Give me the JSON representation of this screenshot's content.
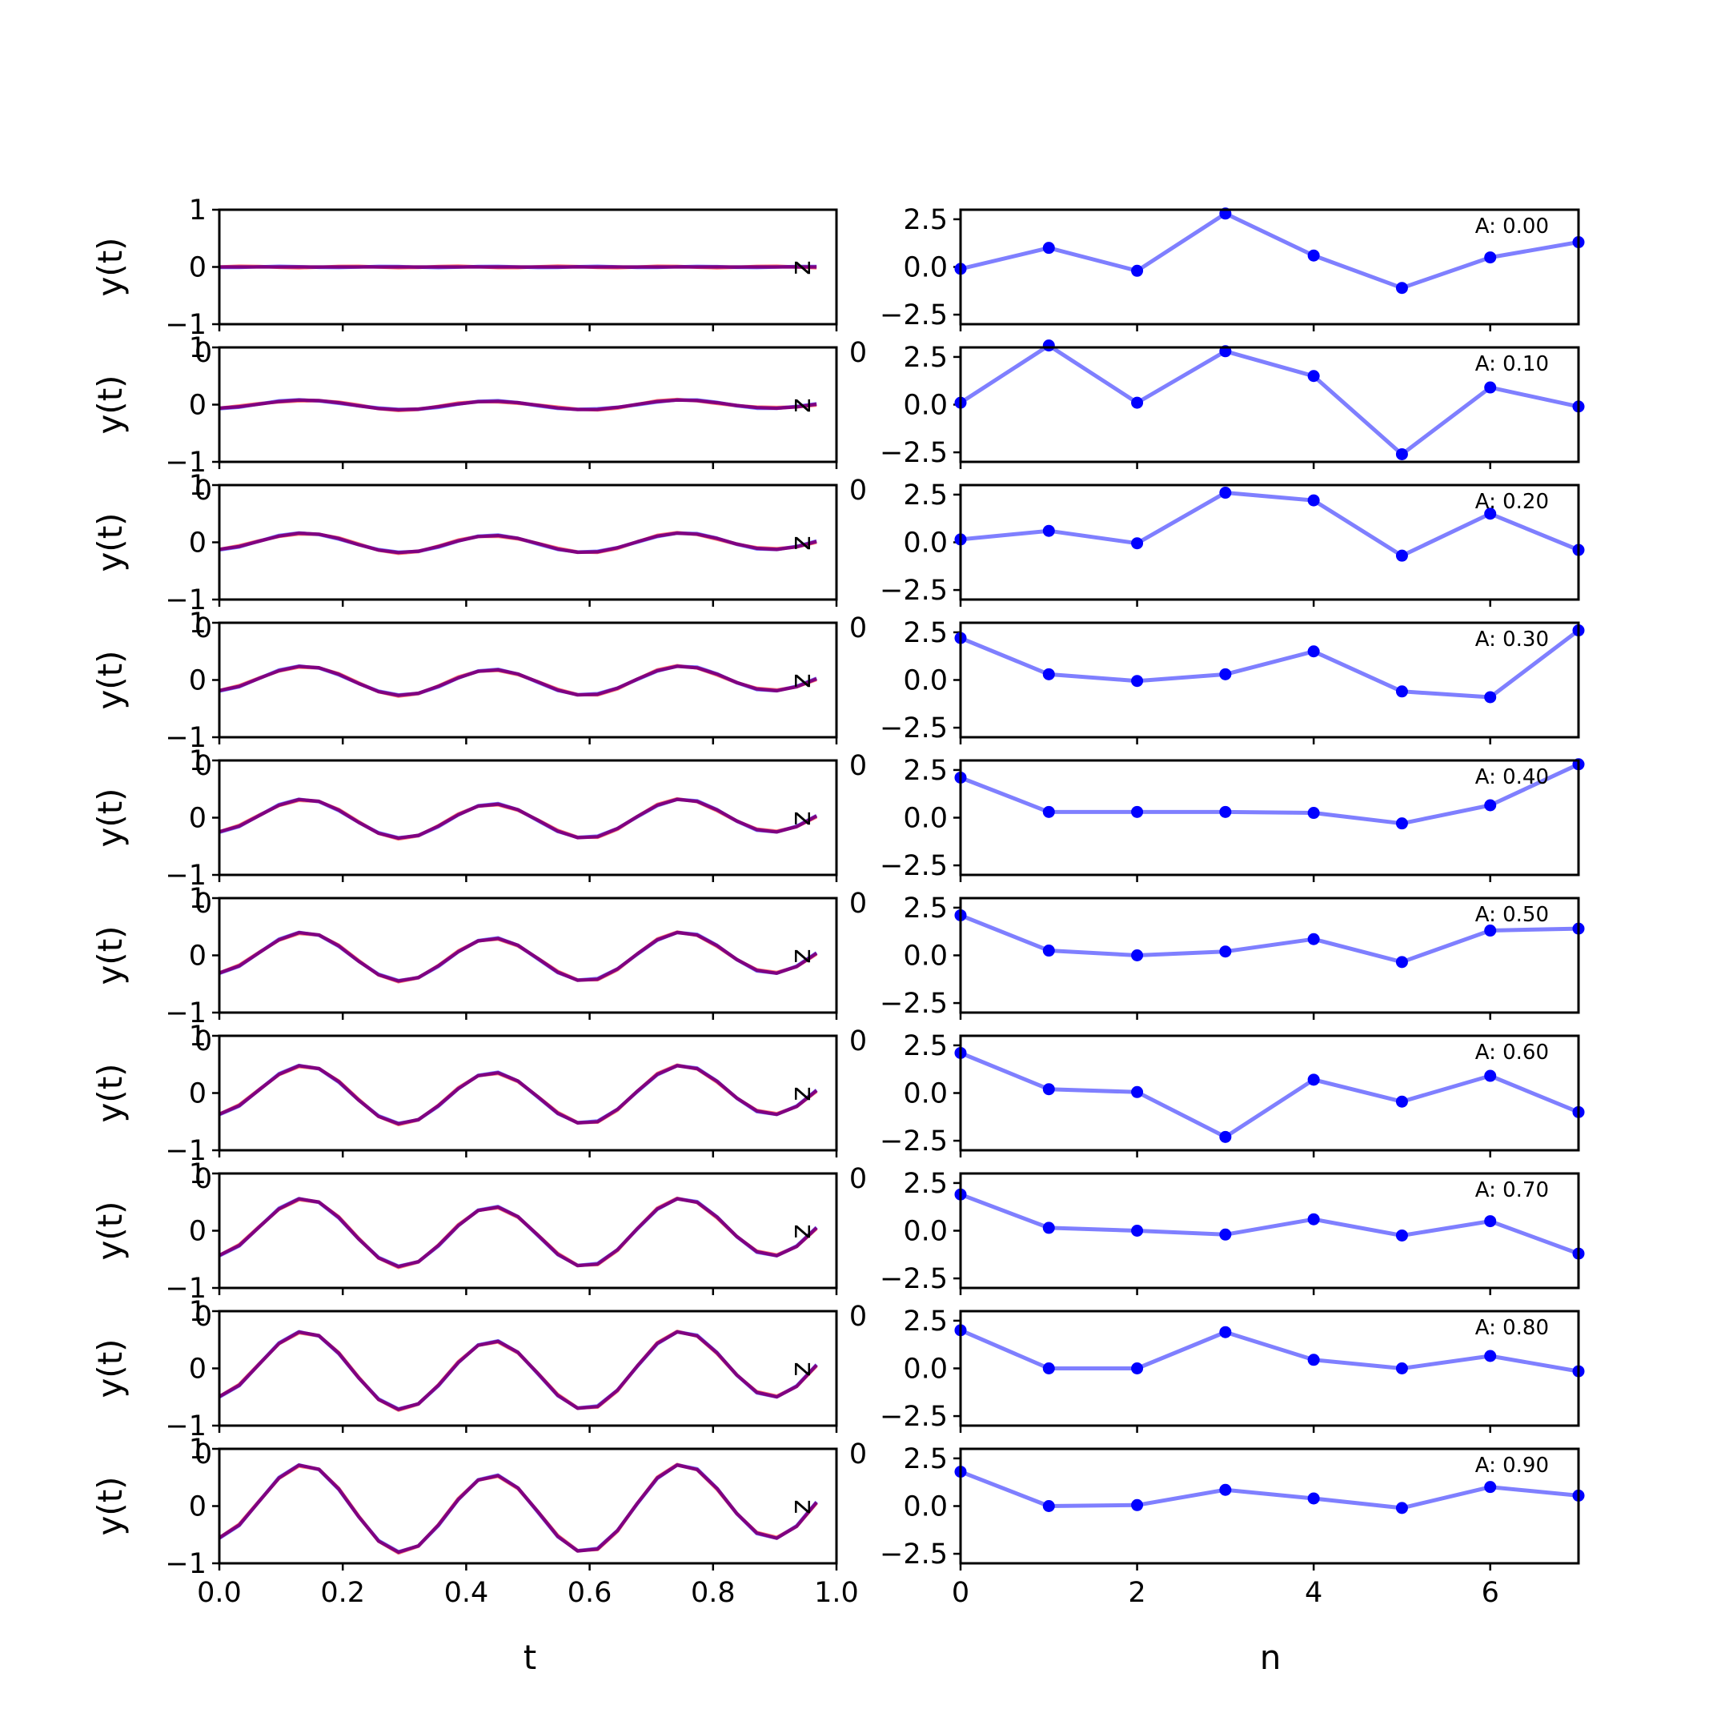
{
  "chart_data": [
    {
      "type": "line",
      "panel": "left",
      "xlabel": "t",
      "ylabel": "y(t)",
      "xlim": [
        0,
        1
      ],
      "ylim": [
        -1,
        1
      ],
      "xticks": [
        "0.0",
        "0.2",
        "0.4",
        "0.6",
        "0.8",
        "1.0"
      ],
      "yticks": [
        "−1",
        "0",
        "1"
      ],
      "grid": false,
      "x": [
        0.0,
        0.0323,
        0.0645,
        0.0968,
        0.129,
        0.1613,
        0.1935,
        0.2258,
        0.2581,
        0.2903,
        0.3226,
        0.3548,
        0.3871,
        0.4194,
        0.4516,
        0.4839,
        0.5161,
        0.5484,
        0.5806,
        0.6129,
        0.6452,
        0.6774,
        0.7097,
        0.7419,
        0.7742,
        0.8065,
        0.8387,
        0.871,
        0.9032,
        0.9355,
        0.9677
      ],
      "series_colors": [
        "#ff0000",
        "#0000ff",
        "#800080"
      ],
      "rows": [
        {
          "A": 0.0
        },
        {
          "A": 0.1
        },
        {
          "A": 0.2
        },
        {
          "A": 0.3
        },
        {
          "A": 0.4
        },
        {
          "A": 0.5
        },
        {
          "A": 0.6
        },
        {
          "A": 0.7
        },
        {
          "A": 0.8
        },
        {
          "A": 0.9
        }
      ],
      "side_label": "z",
      "overlap_label": "0"
    },
    {
      "type": "line",
      "panel": "right",
      "xlabel": "n",
      "xlim": [
        0,
        7
      ],
      "ylim": [
        -3,
        3
      ],
      "xticks": [
        "0",
        "2",
        "4",
        "6"
      ],
      "yticks": [
        "−2.5",
        "0.0",
        "2.5"
      ],
      "grid": false,
      "line_color": "#0000ff",
      "line_alpha": 0.5,
      "marker_color": "#0000ff",
      "x": [
        0,
        1,
        2,
        3,
        4,
        5,
        6,
        7
      ],
      "rows": [
        {
          "label": "A: 0.00",
          "values": [
            -0.1,
            1.0,
            -0.2,
            2.8,
            0.6,
            -1.1,
            0.5,
            1.3
          ]
        },
        {
          "label": "A: 0.10",
          "values": [
            0.1,
            3.1,
            0.1,
            2.8,
            1.5,
            -2.6,
            0.9,
            -0.1
          ]
        },
        {
          "label": "A: 0.20",
          "values": [
            0.15,
            0.6,
            -0.05,
            2.6,
            2.2,
            -0.7,
            1.5,
            -0.4
          ]
        },
        {
          "label": "A: 0.30",
          "values": [
            2.2,
            0.3,
            -0.05,
            0.3,
            1.5,
            -0.6,
            -0.9,
            2.6
          ]
        },
        {
          "label": "A: 0.40",
          "values": [
            2.1,
            0.3,
            0.3,
            0.3,
            0.25,
            -0.3,
            0.65,
            2.8
          ]
        },
        {
          "label": "A: 0.50",
          "values": [
            2.1,
            0.25,
            0.0,
            0.2,
            0.85,
            -0.35,
            1.3,
            1.4
          ]
        },
        {
          "label": "A: 0.60",
          "values": [
            2.1,
            0.2,
            0.05,
            -2.3,
            0.7,
            -0.45,
            0.9,
            -1.0
          ]
        },
        {
          "label": "A: 0.70",
          "values": [
            1.9,
            0.15,
            0.0,
            -0.2,
            0.6,
            -0.25,
            0.5,
            -1.2
          ]
        },
        {
          "label": "A: 0.80",
          "values": [
            2.0,
            0.0,
            0.0,
            1.9,
            0.45,
            0.0,
            0.65,
            -0.15
          ]
        },
        {
          "label": "A: 0.90",
          "values": [
            1.8,
            0.0,
            0.05,
            0.85,
            0.4,
            -0.1,
            1.0,
            0.55
          ]
        }
      ]
    }
  ]
}
